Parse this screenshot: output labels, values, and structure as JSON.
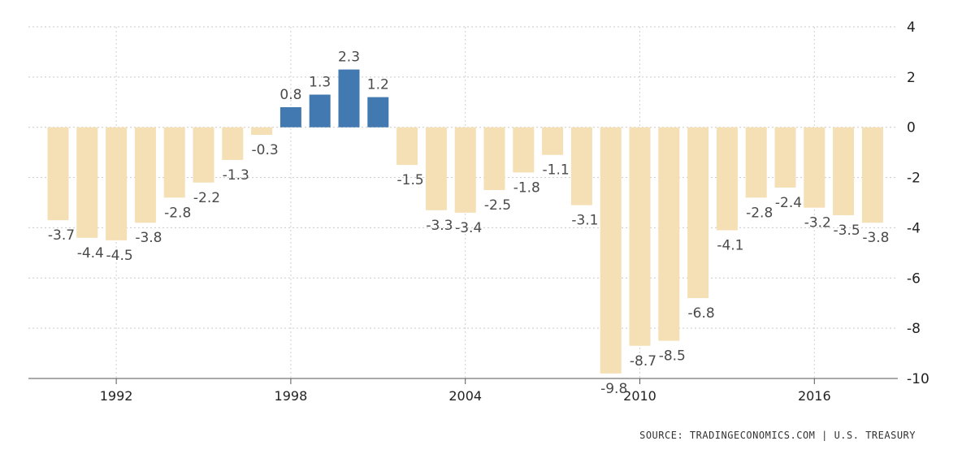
{
  "chart_data": {
    "type": "bar",
    "title": "",
    "xlabel": "",
    "ylabel": "",
    "ylim": [
      -10,
      4
    ],
    "y_ticks": [
      "4",
      "2",
      "0",
      "-2",
      "-4",
      "-6",
      "-8",
      "-10"
    ],
    "x_tick_labels": [
      "1992",
      "1998",
      "2004",
      "2010",
      "2016"
    ],
    "x_tick_years": [
      1992,
      1998,
      2004,
      2010,
      2016
    ],
    "categories": [
      1990,
      1991,
      1992,
      1993,
      1994,
      1995,
      1996,
      1997,
      1998,
      1999,
      2000,
      2001,
      2002,
      2003,
      2004,
      2005,
      2006,
      2007,
      2008,
      2009,
      2010,
      2011,
      2012,
      2013,
      2014,
      2015,
      2016,
      2017,
      2018
    ],
    "values": [
      -3.7,
      -4.4,
      -4.5,
      -3.8,
      -2.8,
      -2.2,
      -1.3,
      -0.3,
      0.8,
      1.3,
      2.3,
      1.2,
      -1.5,
      -3.3,
      -3.4,
      -2.5,
      -1.8,
      -1.1,
      -3.1,
      -9.8,
      -8.7,
      -8.5,
      -6.8,
      -4.1,
      -2.8,
      -2.4,
      -3.2,
      -3.5,
      -3.8
    ],
    "value_labels": [
      "-3.7",
      "-4.4",
      "-4.5",
      "-3.8",
      "-2.8",
      "-2.2",
      "-1.3",
      "-0.3",
      "0.8",
      "1.3",
      "2.3",
      "1.2",
      "-1.5",
      "-3.3",
      "-3.4",
      "-2.5",
      "-1.8",
      "-1.1",
      "-3.1",
      "-9.8",
      "-8.7",
      "-8.5",
      "-6.8",
      "-4.1",
      "-2.8",
      "-2.4",
      "-3.2",
      "-3.5",
      "-3.8"
    ],
    "grid": true,
    "positive_color": "#4279b0",
    "negative_color": "#f5dfb4",
    "source": "SOURCE: TRADINGECONOMICS.COM | U.S. TREASURY"
  }
}
